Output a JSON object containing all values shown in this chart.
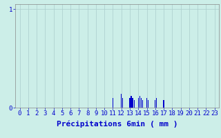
{
  "xlabel": "Précipitations 6min ( mm )",
  "xlim": [
    -0.5,
    23.5
  ],
  "ylim": [
    0,
    1.05
  ],
  "yticks": [
    0,
    1
  ],
  "xticks": [
    0,
    1,
    2,
    3,
    4,
    5,
    6,
    7,
    8,
    9,
    10,
    11,
    12,
    13,
    14,
    15,
    16,
    17,
    18,
    19,
    20,
    21,
    22,
    23
  ],
  "background_color": "#cceee8",
  "grid_color": "#aacccc",
  "bar_color": "#0000cc",
  "raw_bars": [
    [
      11.0,
      0.1
    ],
    [
      12.0,
      0.14
    ],
    [
      12.17,
      0.1
    ],
    [
      13.0,
      0.1
    ],
    [
      13.17,
      0.12
    ],
    [
      13.33,
      0.1
    ],
    [
      13.5,
      0.08
    ],
    [
      14.0,
      0.1
    ],
    [
      14.17,
      0.12
    ],
    [
      14.33,
      0.1
    ],
    [
      14.5,
      0.08
    ],
    [
      15.0,
      0.1
    ],
    [
      15.17,
      0.08
    ],
    [
      16.0,
      0.08
    ],
    [
      16.17,
      0.1
    ],
    [
      17.0,
      0.08
    ]
  ],
  "bar_width": 0.1,
  "tick_color": "#0000cc",
  "xlabel_fontsize": 8,
  "tick_fontsize": 6.5,
  "ytick_labels": [
    "0",
    "1"
  ],
  "spine_color": "#888888"
}
